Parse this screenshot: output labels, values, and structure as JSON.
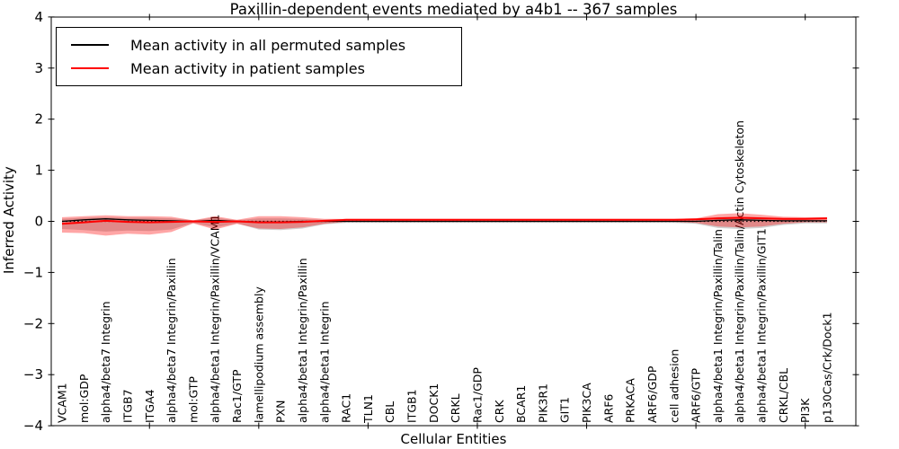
{
  "title": "Paxillin-dependent events mediated by a4b1 -- 367 samples",
  "axes": {
    "x_label": "Cellular Entities",
    "y_label": "Inferred Activity",
    "y_tick_labels": [
      "4",
      "3",
      "2",
      "1",
      "0",
      "−1",
      "−2",
      "−3",
      "−4"
    ],
    "y_tick_values": [
      4,
      3,
      2,
      1,
      0,
      -1,
      -2,
      -3,
      -4
    ]
  },
  "legend": {
    "entries": [
      {
        "label": "Mean activity in all permuted samples",
        "color": "#000000"
      },
      {
        "label": "Mean activity in patient samples",
        "color": "#ff0000"
      }
    ]
  },
  "chart_data": {
    "type": "line",
    "title": "Paxillin-dependent events mediated by a4b1 -- 367 samples",
    "xlabel": "Cellular Entities",
    "ylabel": "Inferred Activity",
    "ylim": [
      -4,
      4
    ],
    "grid": false,
    "legend_position": "upper left",
    "zero_line": {
      "value": 0,
      "style": "dotted",
      "color": "#000000"
    },
    "x_major_tick_indices": [
      4,
      9,
      14,
      19,
      24,
      29,
      34
    ],
    "categories": [
      "VCAM1",
      "mol:GDP",
      "alpha4/beta7 Integrin",
      "ITGB7",
      "ITGA4",
      "alpha4/beta7 Integrin/Paxillin",
      "mol:GTP",
      "alpha4/beta1 Integrin/Paxillin/VCAM1",
      "Rac1/GTP",
      "lamellipodium assembly",
      "PXN",
      "alpha4/beta1 Integrin/Paxillin",
      "alpha4/beta1 Integrin",
      "RAC1",
      "TLN1",
      "CBL",
      "ITGB1",
      "DOCK1",
      "CRKL",
      "Rac1/GDP",
      "CRK",
      "BCAR1",
      "PIK3R1",
      "GIT1",
      "PIK3CA",
      "ARF6",
      "PRKACA",
      "ARF6/GDP",
      "cell adhesion",
      "ARF6/GTP",
      "alpha4/beta1 Integrin/Paxillin/Talin",
      "alpha4/beta1 Integrin/Paxillin/Talin/Actin Cytoskeleton",
      "alpha4/beta1 Integrin/Paxillin/GIT1",
      "CRKL/CBL",
      "PI3K",
      "p130Cas/Crk/Dock1"
    ],
    "series": [
      {
        "name": "Mean activity in all permuted samples",
        "color": "#000000",
        "width": 1.3,
        "values": [
          0.0,
          0.03,
          0.05,
          0.03,
          0.02,
          0.01,
          0.0,
          0.02,
          0.0,
          -0.01,
          -0.01,
          0.0,
          0.0,
          0.0,
          0.0,
          0.0,
          0.0,
          0.0,
          0.0,
          0.0,
          0.0,
          0.0,
          0.0,
          0.0,
          0.0,
          0.0,
          0.0,
          0.0,
          0.0,
          0.0,
          0.02,
          0.03,
          0.02,
          0.01,
          0.01,
          0.01
        ]
      },
      {
        "name": "Mean activity in patient samples",
        "color": "#ff0000",
        "width": 2,
        "values": [
          -0.05,
          -0.02,
          0.01,
          -0.01,
          -0.02,
          -0.01,
          0.0,
          -0.01,
          0.0,
          -0.02,
          -0.02,
          -0.01,
          0.01,
          0.03,
          0.03,
          0.03,
          0.03,
          0.03,
          0.03,
          0.03,
          0.03,
          0.03,
          0.03,
          0.03,
          0.03,
          0.03,
          0.03,
          0.03,
          0.03,
          0.04,
          0.06,
          0.07,
          0.06,
          0.05,
          0.05,
          0.06
        ]
      }
    ],
    "bands": [
      {
        "name": "permuted-samples-std-band",
        "color": "rgba(0,0,0,0.18)",
        "upper": [
          0.05,
          0.07,
          0.08,
          0.07,
          0.07,
          0.06,
          0.02,
          0.07,
          0.02,
          0.06,
          0.06,
          0.05,
          0.03,
          0.02,
          0.02,
          0.02,
          0.02,
          0.02,
          0.02,
          0.02,
          0.02,
          0.02,
          0.02,
          0.02,
          0.02,
          0.02,
          0.02,
          0.02,
          0.02,
          0.03,
          0.08,
          0.09,
          0.08,
          0.05,
          0.03,
          0.03
        ],
        "lower": [
          -0.15,
          -0.17,
          -0.2,
          -0.18,
          -0.19,
          -0.16,
          -0.03,
          -0.12,
          -0.04,
          -0.16,
          -0.17,
          -0.14,
          -0.06,
          -0.03,
          -0.03,
          -0.03,
          -0.03,
          -0.03,
          -0.03,
          -0.03,
          -0.03,
          -0.03,
          -0.03,
          -0.03,
          -0.03,
          -0.03,
          -0.03,
          -0.03,
          -0.03,
          -0.05,
          -0.13,
          -0.15,
          -0.13,
          -0.07,
          -0.04,
          -0.04
        ]
      },
      {
        "name": "patient-samples-std-band",
        "color": "rgba(255,0,0,0.35)",
        "upper": [
          0.08,
          0.1,
          0.12,
          0.1,
          0.1,
          0.09,
          0.02,
          0.1,
          0.03,
          0.1,
          0.1,
          0.08,
          0.05,
          0.05,
          0.05,
          0.05,
          0.05,
          0.05,
          0.05,
          0.05,
          0.05,
          0.05,
          0.05,
          0.05,
          0.05,
          0.05,
          0.05,
          0.05,
          0.05,
          0.06,
          0.14,
          0.16,
          0.13,
          0.09,
          0.08,
          0.08
        ],
        "lower": [
          -0.22,
          -0.23,
          -0.28,
          -0.24,
          -0.26,
          -0.21,
          -0.04,
          -0.16,
          -0.05,
          -0.14,
          -0.15,
          -0.12,
          -0.05,
          -0.01,
          -0.01,
          -0.01,
          -0.01,
          -0.01,
          -0.01,
          -0.01,
          -0.01,
          -0.01,
          -0.01,
          -0.01,
          -0.01,
          -0.01,
          -0.01,
          -0.01,
          -0.01,
          -0.03,
          -0.1,
          -0.12,
          -0.1,
          -0.05,
          -0.02,
          -0.02
        ]
      }
    ]
  }
}
